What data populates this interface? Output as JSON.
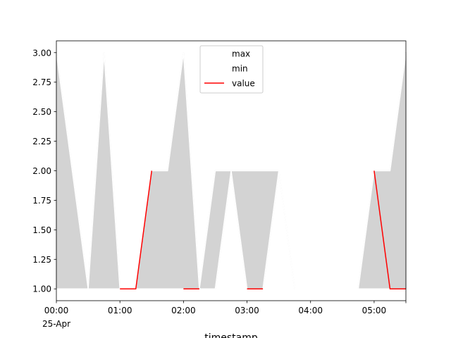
{
  "chart_data": {
    "type": "area",
    "xlabel": "timestamp",
    "ylabel": "",
    "x": [
      "00:00",
      "00:15",
      "00:30",
      "00:45",
      "01:00",
      "01:15",
      "01:30",
      "01:45",
      "02:00",
      "02:15",
      "02:30",
      "02:45",
      "03:00",
      "03:15",
      "03:30",
      "03:45",
      "04:00",
      "04:15",
      "04:30",
      "04:45",
      "05:00",
      "05:15",
      "05:30"
    ],
    "x_tick_labels": [
      "00:00",
      "01:00",
      "02:00",
      "03:00",
      "04:00",
      "05:00"
    ],
    "x_date_label": "25-Apr",
    "xlim": [
      "00:00",
      "05:30"
    ],
    "ylim": [
      0.9,
      3.1
    ],
    "y_ticks": [
      "1.00",
      "1.25",
      "1.50",
      "1.75",
      "2.00",
      "2.25",
      "2.50",
      "2.75",
      "3.00"
    ],
    "series": [
      {
        "name": "max",
        "color": "#ffffff",
        "values": [
          3,
          2,
          1,
          3,
          1,
          1,
          2,
          2,
          3,
          1,
          2,
          2,
          2,
          2,
          2,
          1,
          1,
          1,
          1,
          1,
          2,
          2,
          3
        ]
      },
      {
        "name": "min",
        "color": "#ffffff",
        "values": [
          1,
          1,
          1,
          1,
          1,
          1,
          1,
          1,
          1,
          1,
          1,
          2,
          1,
          1,
          2,
          1,
          1,
          1,
          1,
          1,
          1,
          1,
          1
        ]
      },
      {
        "name": "value",
        "color": "#ff0000",
        "values": [
          null,
          null,
          null,
          null,
          1,
          1,
          2,
          null,
          1,
          1,
          null,
          null,
          1,
          1,
          null,
          null,
          null,
          null,
          null,
          null,
          2,
          1,
          1
        ]
      }
    ],
    "fill_between": {
      "lower": "min",
      "upper": "max",
      "color": "#d3d3d3"
    },
    "legend": {
      "placement": "top-center",
      "entries": [
        "max",
        "min",
        "value"
      ]
    },
    "grid": false
  }
}
